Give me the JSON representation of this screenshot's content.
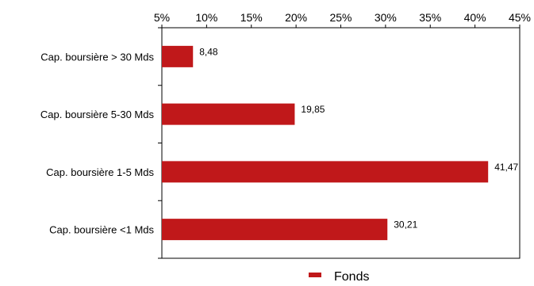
{
  "chart_data": {
    "type": "bar",
    "orientation": "horizontal",
    "categories": [
      "Cap. boursière > 30 Mds",
      "Cap. boursière 5-30 Mds",
      "Cap. boursière 1-5 Mds",
      "Cap. boursière <1 Mds"
    ],
    "series": [
      {
        "name": "Fonds",
        "values": [
          8.48,
          19.85,
          41.47,
          30.21
        ],
        "value_labels": [
          "8,48",
          "19,85",
          "41,47",
          "30,21"
        ],
        "color": "#C0181A"
      }
    ],
    "x_ticks": [
      5,
      10,
      15,
      20,
      25,
      30,
      35,
      40,
      45
    ],
    "x_tick_labels": [
      "5%",
      "10%",
      "15%",
      "20%",
      "25%",
      "30%",
      "35%",
      "40%",
      "45%"
    ],
    "xlim": [
      5,
      45
    ],
    "x_axis_position": "top",
    "grid": false,
    "legend": "bottom-center",
    "title": "",
    "xlabel": "",
    "ylabel": ""
  }
}
